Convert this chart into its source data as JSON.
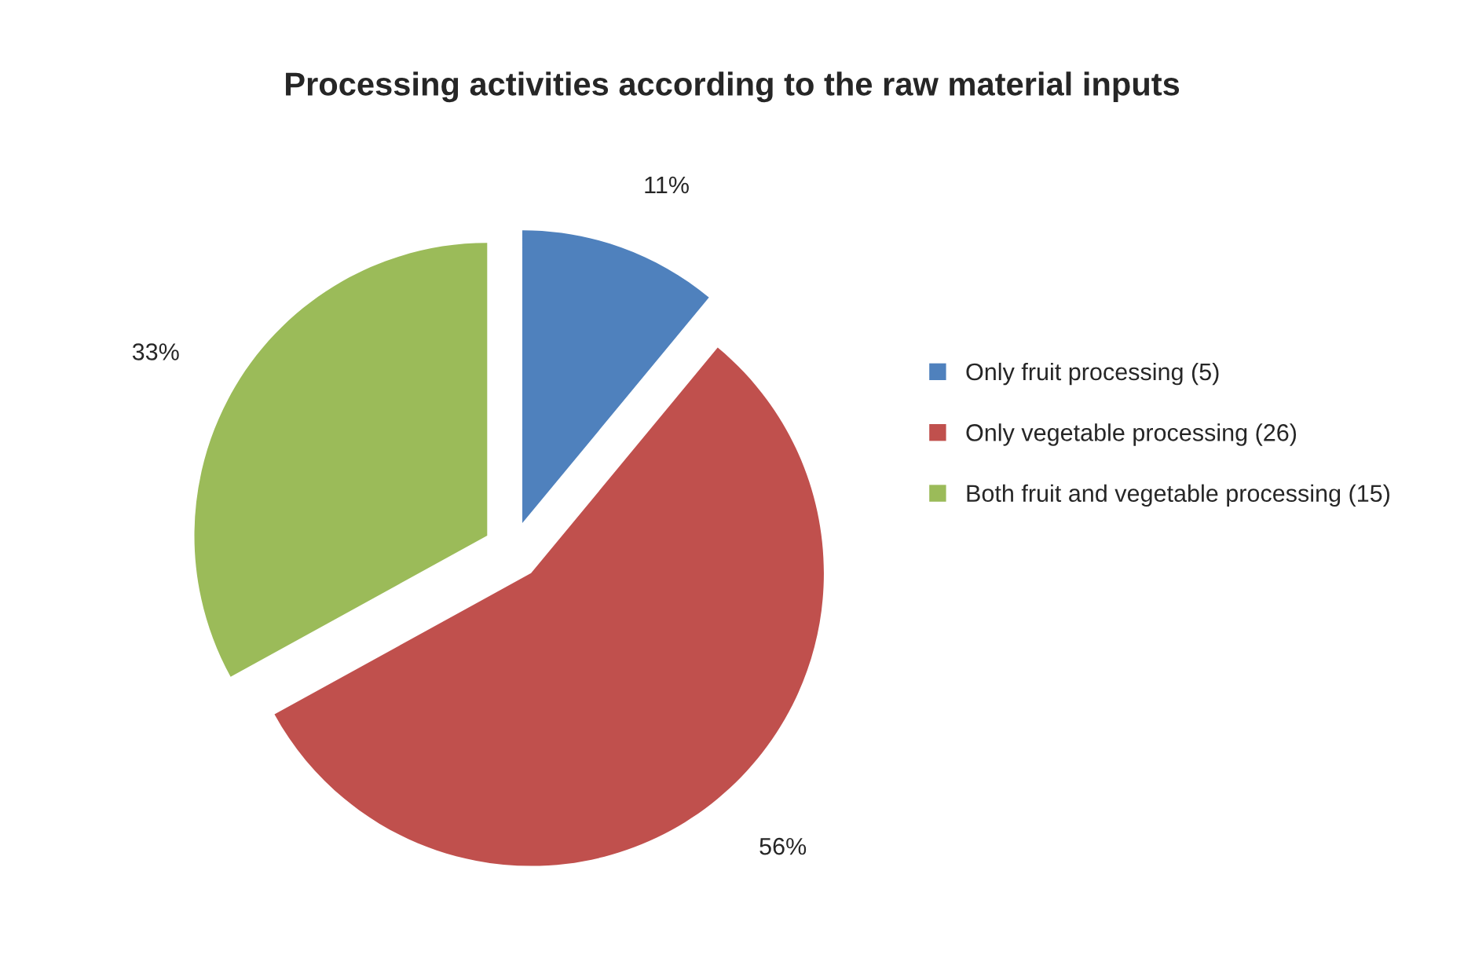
{
  "chart_data": {
    "type": "pie",
    "title": "Processing activities according to the raw material inputs",
    "categories": [
      "Only fruit processing (5)",
      "Only vegetable processing (26)",
      "Both fruit and vegetable processing (15)"
    ],
    "values": [
      11,
      56,
      33
    ],
    "colors": [
      "#4f81bd",
      "#c0504d",
      "#9bbb59"
    ],
    "value_labels": [
      "11%",
      "56%",
      "33%"
    ],
    "legend": "right"
  }
}
